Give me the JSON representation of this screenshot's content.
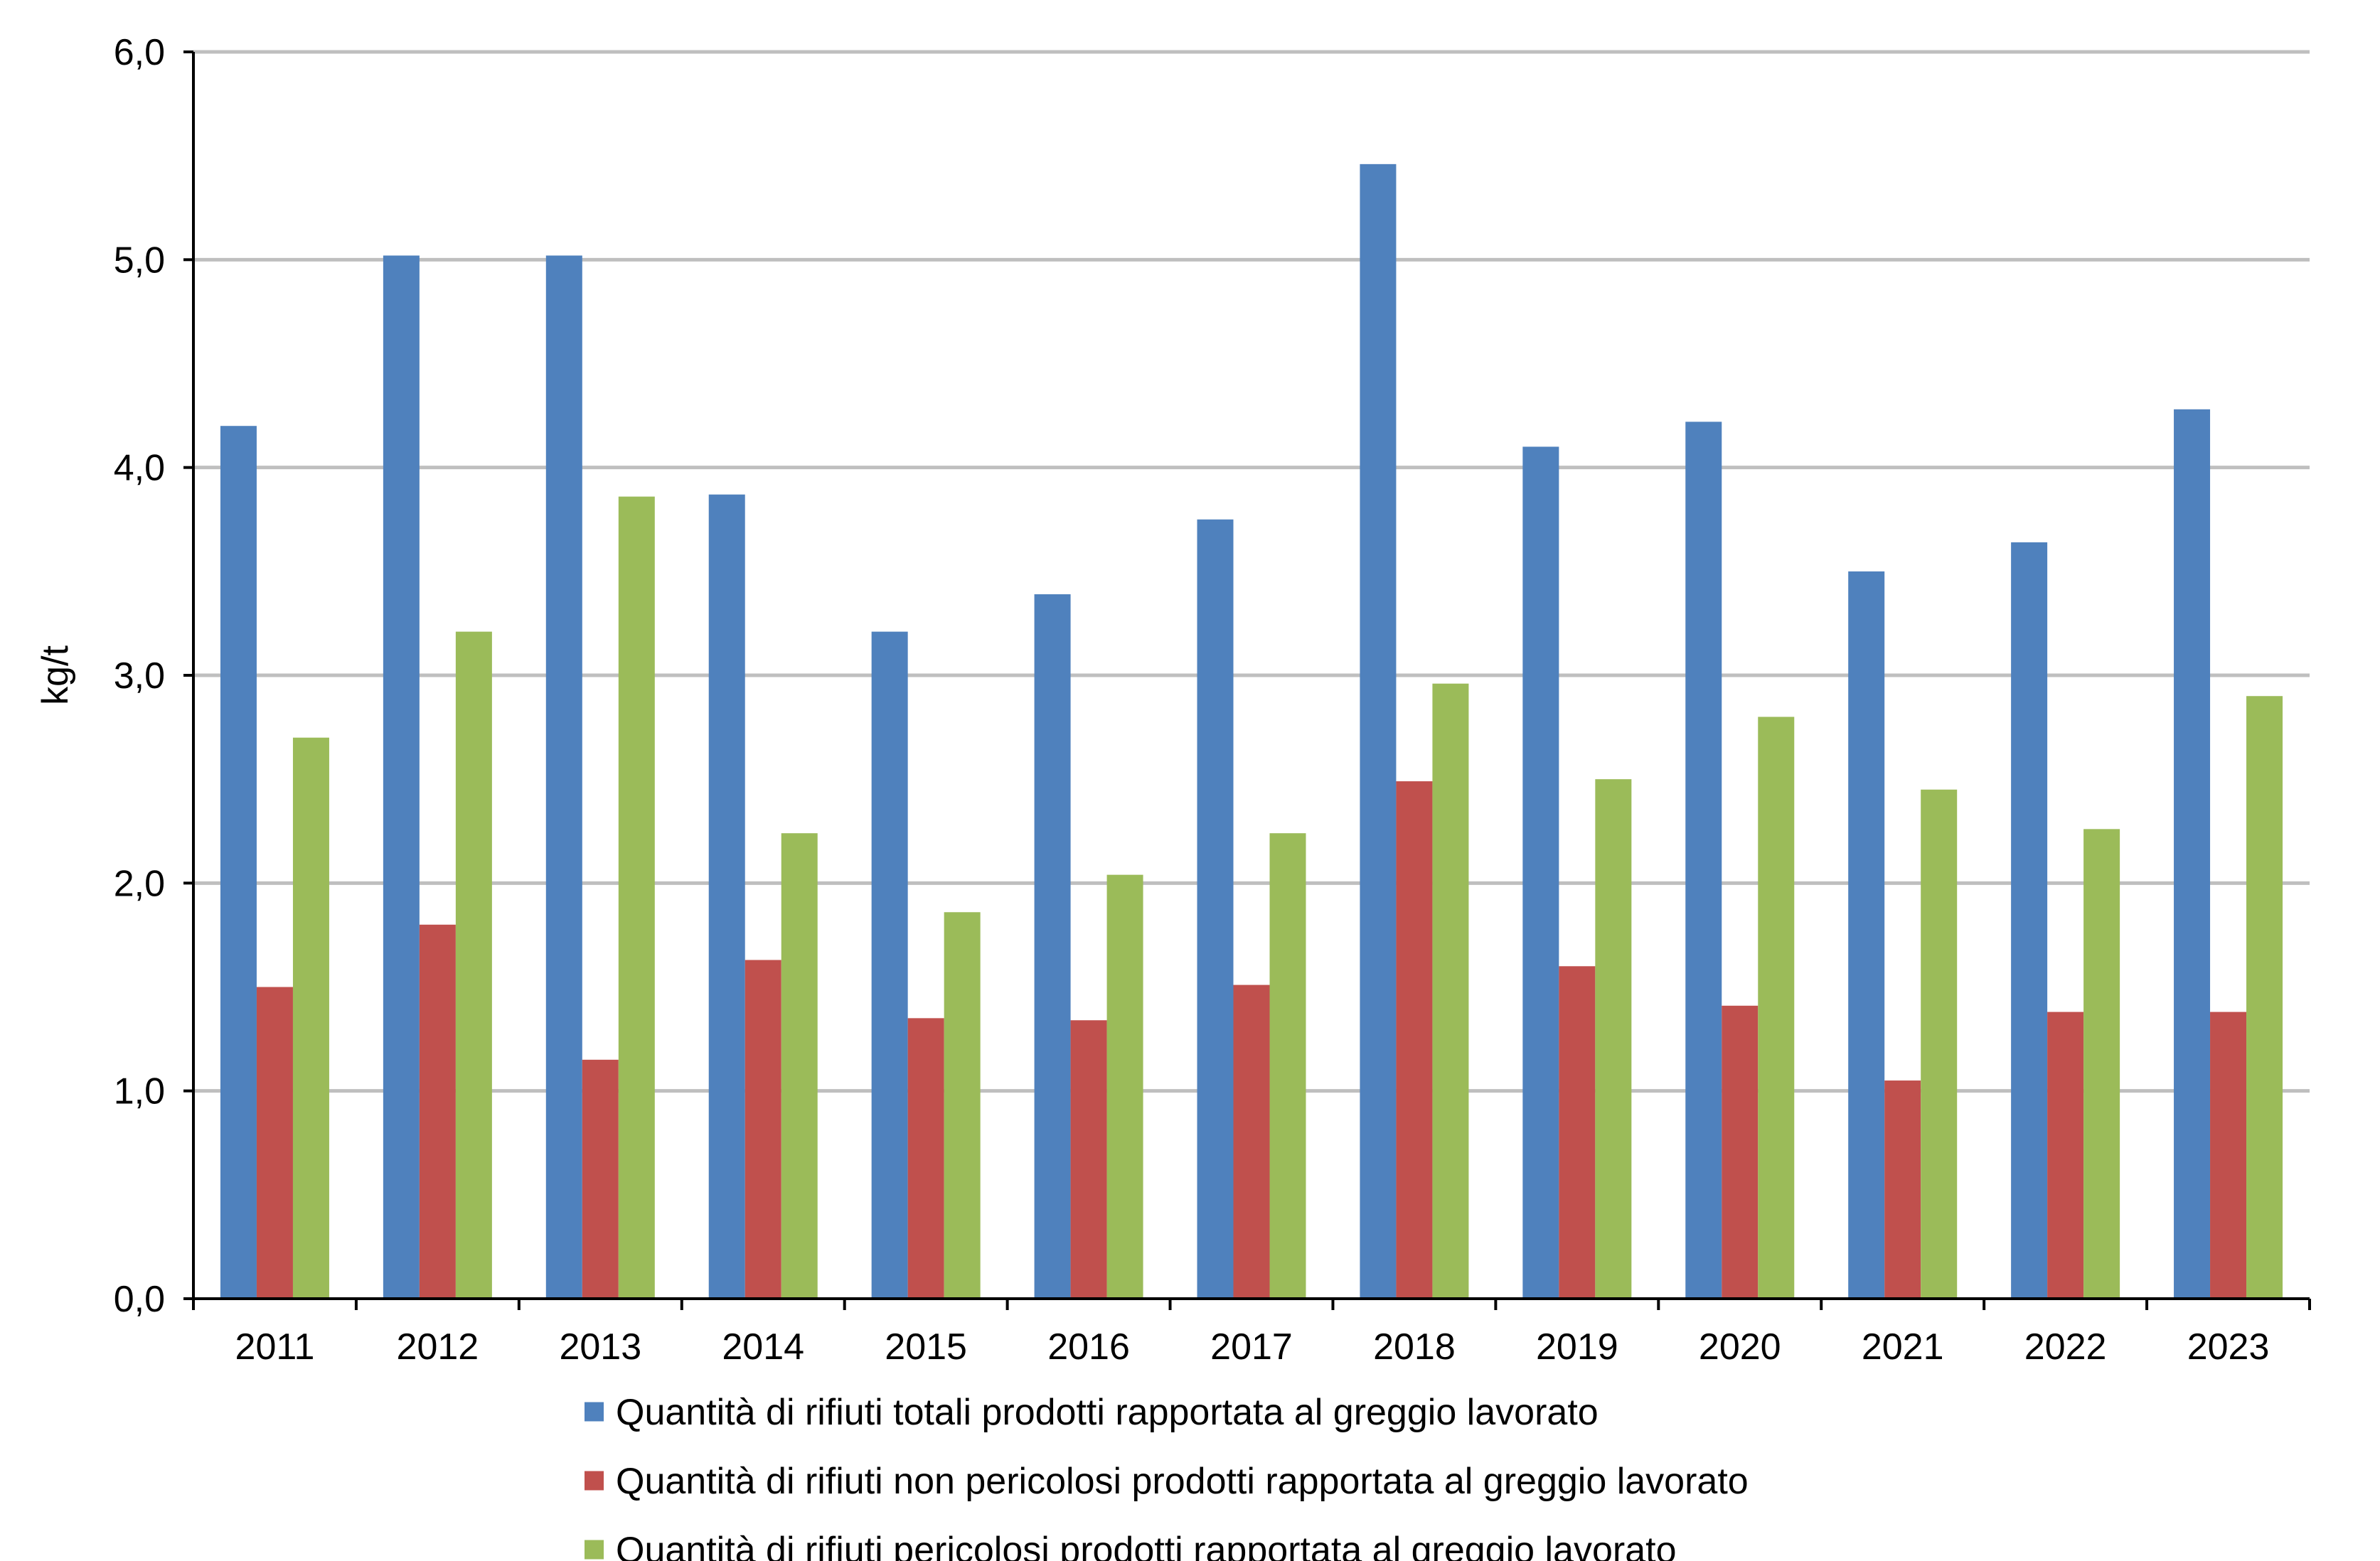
{
  "chart_data": {
    "type": "bar",
    "title": "",
    "xlabel": "",
    "ylabel": "kg/t",
    "ylim": [
      0,
      6
    ],
    "y_ticks": [
      "0,0",
      "1,0",
      "2,0",
      "3,0",
      "4,0",
      "5,0",
      "6,0"
    ],
    "y_tick_values": [
      0,
      1,
      2,
      3,
      4,
      5,
      6
    ],
    "grid": true,
    "legend_position": "bottom",
    "categories": [
      "2011",
      "2012",
      "2013",
      "2014",
      "2015",
      "2016",
      "2017",
      "2018",
      "2019",
      "2020",
      "2021",
      "2022",
      "2023"
    ],
    "series": [
      {
        "name": "Quantità di rifiuti totali prodotti rapportata al greggio lavorato",
        "color": "#4f81bd",
        "values": [
          4.2,
          5.02,
          5.02,
          3.87,
          3.21,
          3.39,
          3.75,
          5.46,
          4.1,
          4.22,
          3.5,
          3.64,
          4.28
        ]
      },
      {
        "name": "Quantità di rifiuti non pericolosi prodotti rapportata al greggio lavorato",
        "color": "#c0504d",
        "values": [
          1.5,
          1.8,
          1.15,
          1.63,
          1.35,
          1.34,
          1.51,
          2.49,
          1.6,
          1.41,
          1.05,
          1.38,
          1.38
        ]
      },
      {
        "name": "Quantità di rifiuti pericolosi prodotti rapportata al greggio lavorato",
        "color": "#9bbb59",
        "values": [
          2.7,
          3.21,
          3.86,
          2.24,
          1.86,
          2.04,
          2.24,
          2.96,
          2.5,
          2.8,
          2.45,
          2.26,
          2.9
        ]
      }
    ],
    "colors": {
      "grid": "#bfbfbf",
      "axis": "#000000",
      "background": "#ffffff"
    }
  }
}
